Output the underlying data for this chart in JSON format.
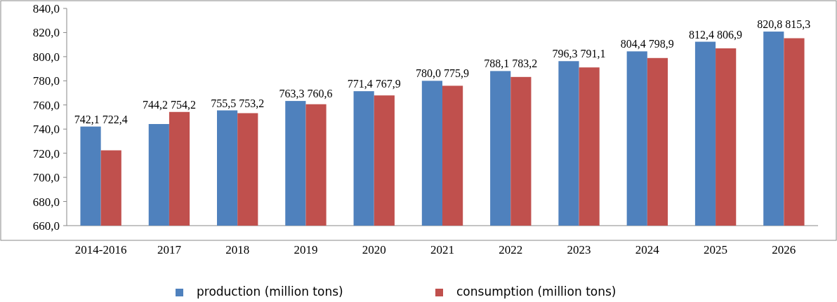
{
  "chart_data": {
    "type": "bar",
    "categories": [
      "2014-2016",
      "2017",
      "2018",
      "2019",
      "2020",
      "2021",
      "2022",
      "2023",
      "2024",
      "2025",
      "2026"
    ],
    "series": [
      {
        "name": "production (million tons)",
        "color": "#4f81bd",
        "values": [
          742.1,
          744.2,
          755.5,
          763.3,
          771.4,
          780.0,
          788.1,
          796.3,
          804.4,
          812.4,
          820.8
        ],
        "value_labels": [
          "742,1",
          "744,2",
          "755,5",
          "763,3",
          "771,4",
          "780,0",
          "788,1",
          "796,3",
          "804,4",
          "812,4",
          "820,8"
        ]
      },
      {
        "name": "consumption (million tons)",
        "color": "#c0504d",
        "values": [
          722.4,
          754.2,
          753.2,
          760.6,
          767.9,
          775.9,
          783.2,
          791.1,
          798.9,
          806.9,
          815.3
        ],
        "value_labels": [
          "722,4",
          "754,2",
          "753,2",
          "760,6",
          "767,9",
          "775,9",
          "783,2",
          "791,1",
          "798,9",
          "806,9",
          "815,3"
        ]
      }
    ],
    "ylim": [
      660,
      840
    ],
    "yticks": [
      {
        "value": 660,
        "label": "660,0"
      },
      {
        "value": 680,
        "label": "680,0"
      },
      {
        "value": 700,
        "label": "700,0"
      },
      {
        "value": 720,
        "label": "720,0"
      },
      {
        "value": 740,
        "label": "740,0"
      },
      {
        "value": 760,
        "label": "760,0"
      },
      {
        "value": 780,
        "label": "780,0"
      },
      {
        "value": 800,
        "label": "800,0"
      },
      {
        "value": 820,
        "label": "820,0"
      },
      {
        "value": 840,
        "label": "840,0"
      }
    ],
    "legend": "bottom"
  }
}
